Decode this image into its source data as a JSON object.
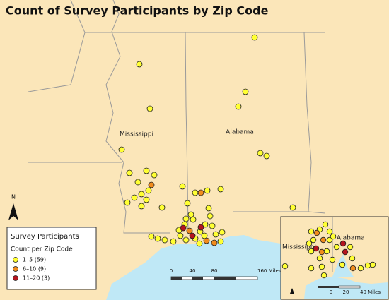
{
  "title": "Count of Survey Participants by Zip Code",
  "state_labels": [
    "Mississippi",
    "Alabama"
  ],
  "legend": {
    "title": "Survey Participants",
    "subtitle": "Count per Zip Code",
    "entries": [
      {
        "label": "1–5 (59)",
        "color": "#ffff33"
      },
      {
        "label": "6–10 (9)",
        "color": "#f08c1e"
      },
      {
        "label": "11–20 (3)",
        "color": "#b4141e"
      }
    ]
  },
  "north": "N",
  "scale_bar": {
    "labels": [
      "0",
      "40",
      "80",
      "160 Miles"
    ]
  },
  "inset": {
    "state_labels": [
      "Mississippi",
      "Alabama"
    ],
    "scale_labels": [
      "0",
      "20",
      "40 Miles"
    ]
  }
}
